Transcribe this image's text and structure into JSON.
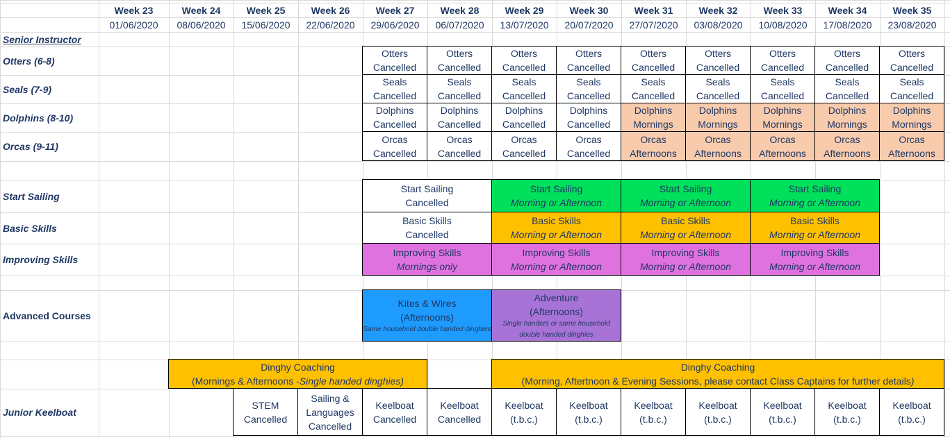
{
  "columns": [
    {
      "week": "Week 23",
      "date": "01/06/2020"
    },
    {
      "week": "Week 24",
      "date": "08/06/2020"
    },
    {
      "week": "Week 25",
      "date": "15/06/2020"
    },
    {
      "week": "Week 26",
      "date": "22/06/2020"
    },
    {
      "week": "Week 27",
      "date": "29/06/2020"
    },
    {
      "week": "Week 28",
      "date": "06/07/2020"
    },
    {
      "week": "Week 29",
      "date": "13/07/2020"
    },
    {
      "week": "Week 30",
      "date": "20/07/2020"
    },
    {
      "week": "Week 31",
      "date": "27/07/2020"
    },
    {
      "week": "Week 32",
      "date": "03/08/2020"
    },
    {
      "week": "Week 33",
      "date": "10/08/2020"
    },
    {
      "week": "Week 34",
      "date": "17/08/2020"
    },
    {
      "week": "Week 35",
      "date": "23/08/2020"
    }
  ],
  "row_labels": {
    "senior_instructor": "Senior Instructor",
    "otters": "Otters (6-8)",
    "seals": "Seals (7-9)",
    "dolphins": "Dolphins (8-10)",
    "orcas": "Orcas (9-11)",
    "start_sailing": "Start Sailing",
    "basic_skills": "Basic Skills",
    "improving_skills": "Improving Skills",
    "advanced_courses": "Advanced Courses",
    "junior_keelboat": "Junior Keelboat"
  },
  "entries": {
    "otters": {
      "name": "Otters",
      "status": "Cancelled"
    },
    "seals": {
      "name": "Seals",
      "status": "Cancelled"
    },
    "dolphins": {
      "name": "Dolphins",
      "cancelled": "Cancelled",
      "mornings": "Mornings"
    },
    "orcas": {
      "name": "Orcas",
      "cancelled": "Cancelled",
      "afternoons": "Afternoons"
    },
    "start_sailing": {
      "name": "Start Sailing",
      "cancelled": "Cancelled",
      "slot": "Morning or Afternoon"
    },
    "basic_skills": {
      "name": "Basic Skills",
      "cancelled": "Cancelled",
      "slot": "Morning or Afternoon"
    },
    "improving_skills": {
      "name": "Improving Skills",
      "mornings_only": "Mornings only",
      "slot": "Morning or Afternoon"
    },
    "kites_wires": {
      "name": "Kites & Wires",
      "time": "(Afternoons)",
      "note": "Same household double handed dinghies"
    },
    "adventure": {
      "name": "Adventure",
      "time": "(Afternoons)",
      "note": "Single handers or same household double handed dinghies"
    },
    "dinghy_coaching_1": {
      "name": "Dinghy Coaching",
      "detail_a": "(Mornings & Afternoons -",
      "detail_b": "Single handed dinghies)"
    },
    "dinghy_coaching_2": {
      "name": "Dinghy Coaching",
      "detail_a": "(Morning, Aftertnoon & Evening Sessions, please contact Class Captains for further details",
      "detail_b": ")"
    },
    "junior_keelboat": {
      "stem_a": "STEM",
      "stem_b": "Cancelled",
      "sl_a": "Sailing &",
      "sl_b": "Languages",
      "sl_c": "Cancelled",
      "keel": "Keelboat",
      "cancelled": "Cancelled",
      "tbc": "(t.b.c.)"
    }
  },
  "colors": {
    "peach": "#f8cbad",
    "green": "#00e05a",
    "gold": "#ffc000",
    "magenta": "#e072e0",
    "blue": "#1e9bff",
    "purple": "#a873d6",
    "text": "#1f3864"
  }
}
